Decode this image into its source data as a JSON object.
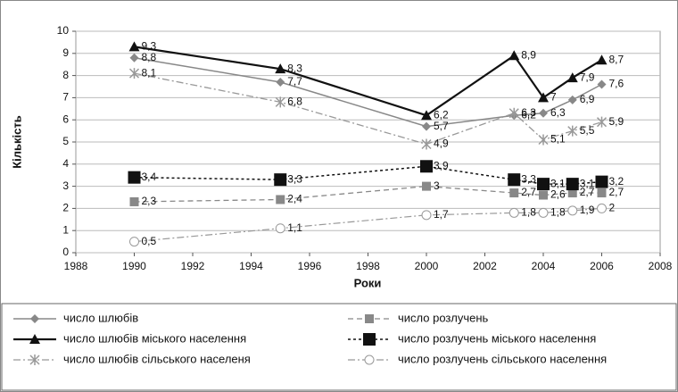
{
  "chart_data": {
    "type": "line",
    "x_label": "Роки",
    "y_label": "Кількість",
    "x": [
      1990,
      1995,
      2000,
      2003,
      2004,
      2005,
      2006
    ],
    "xlim": [
      1988,
      2008
    ],
    "xticks": [
      1988,
      1990,
      1992,
      1994,
      1996,
      1998,
      2000,
      2002,
      2004,
      2006,
      2008
    ],
    "ylim": [
      0,
      10
    ],
    "yticks": [
      0,
      1,
      2,
      3,
      4,
      5,
      6,
      7,
      8,
      9,
      10
    ],
    "grid": true,
    "legend": "bottom",
    "series": [
      {
        "name": "число шлюбів",
        "color": "#888888",
        "values": [
          8.8,
          7.7,
          5.7,
          6.2,
          6.3,
          6.9,
          7.6
        ],
        "value_labels": [
          "8,8",
          "7,7",
          "5,7",
          "6,2",
          "6,3",
          "6,9",
          "7,6"
        ]
      },
      {
        "name": "число розлучень",
        "color": "#888888",
        "values": [
          2.3,
          2.4,
          3,
          2.7,
          2.6,
          2.7,
          2.7
        ],
        "value_labels": [
          "2,3",
          "2,4",
          "3",
          "2,7",
          "2,6",
          "2,7",
          "2,7"
        ]
      },
      {
        "name": "число шлюбів  міського населення",
        "color": "#111111",
        "values": [
          9.3,
          8.3,
          6.2,
          8.9,
          7,
          7.9,
          8.7
        ],
        "value_labels": [
          "9,3",
          "8,3",
          "6,2",
          "8,9",
          "7",
          "7,9",
          "8,7"
        ]
      },
      {
        "name": "число розлучень міського населення",
        "color": "#111111",
        "values": [
          3.4,
          3.3,
          3.9,
          3.3,
          3.1,
          3.1,
          3.2
        ],
        "value_labels": [
          "3,4",
          "3,3",
          "3,9",
          "3,3",
          "3,1",
          "3,1",
          "3,2"
        ]
      },
      {
        "name": "число шлюбів сільського населеня",
        "color": "#999999",
        "values": [
          8.1,
          6.8,
          4.9,
          6.3,
          5.1,
          5.5,
          5.9
        ],
        "value_labels": [
          "8,1",
          "6,8",
          "4,9",
          "6,3",
          "5,1",
          "5,5",
          "5,9"
        ]
      },
      {
        "name": "число розлучень сільського населення",
        "color": "#999999",
        "values": [
          0.5,
          1.1,
          1.7,
          1.8,
          1.8,
          1.9,
          2
        ],
        "value_labels": [
          "0,5",
          "1,1",
          "1,7",
          "1,8",
          "1,8",
          "1,9",
          "2"
        ]
      }
    ]
  }
}
